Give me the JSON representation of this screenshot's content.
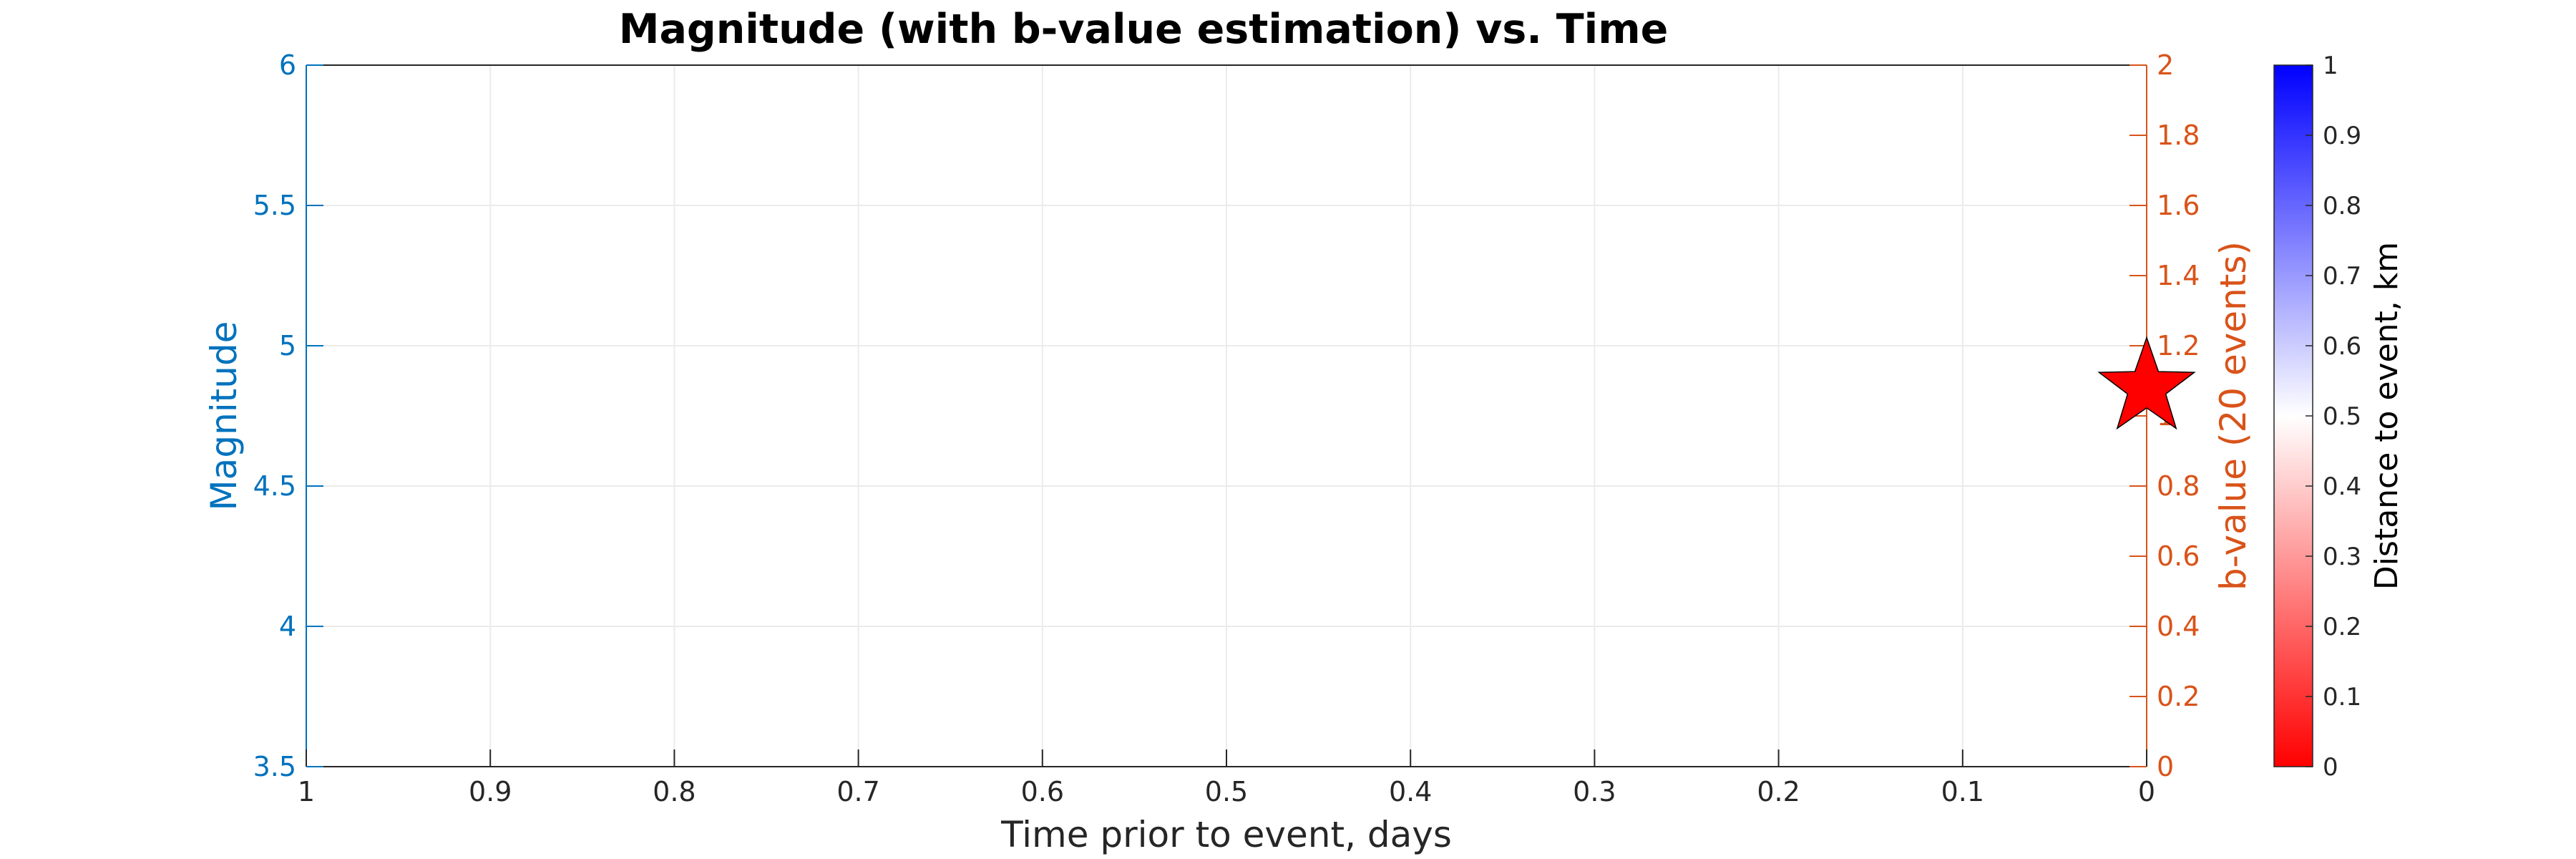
{
  "chart_data": {
    "type": "scatter",
    "title": "Magnitude (with b-value estimation) vs. Time",
    "xlabel": "Time prior to event, days",
    "ylabel_left": "Magnitude",
    "ylabel_right": "b-value (20 events)",
    "colorbar_label": "Distance to event, km",
    "x_reversed": true,
    "xlim": [
      0,
      1
    ],
    "ylim_left": [
      3.5,
      6
    ],
    "ylim_right": [
      0,
      2
    ],
    "colorbar_lim": [
      0,
      1
    ],
    "grid": true,
    "x_ticks": [
      "1",
      "0.9",
      "0.8",
      "0.7",
      "0.6",
      "0.5",
      "0.4",
      "0.3",
      "0.2",
      "0.1",
      "0"
    ],
    "y_left_ticks": [
      "3.5",
      "4",
      "4.5",
      "5",
      "5.5",
      "6"
    ],
    "y_right_ticks": [
      "0",
      "0.2",
      "0.4",
      "0.6",
      "0.8",
      "1",
      "1.2",
      "1.4",
      "1.6",
      "1.8",
      "2"
    ],
    "colorbar_ticks": [
      "0",
      "0.1",
      "0.2",
      "0.3",
      "0.4",
      "0.5",
      "0.6",
      "0.7",
      "0.8",
      "0.9",
      "1"
    ],
    "colors": {
      "left_axis": "#0072BD",
      "right_axis": "#D95319",
      "axis_frame": "#262626",
      "grid": "#ebebeb",
      "main_event": "#ff0000",
      "colormap_low": "#ff0000",
      "colormap_mid": "#ffffff",
      "colormap_high": "#0000ff"
    },
    "series": [
      {
        "marker": "pentagram",
        "points": [
          {
            "x": 0,
            "y": 4.85
          }
        ]
      }
    ]
  }
}
